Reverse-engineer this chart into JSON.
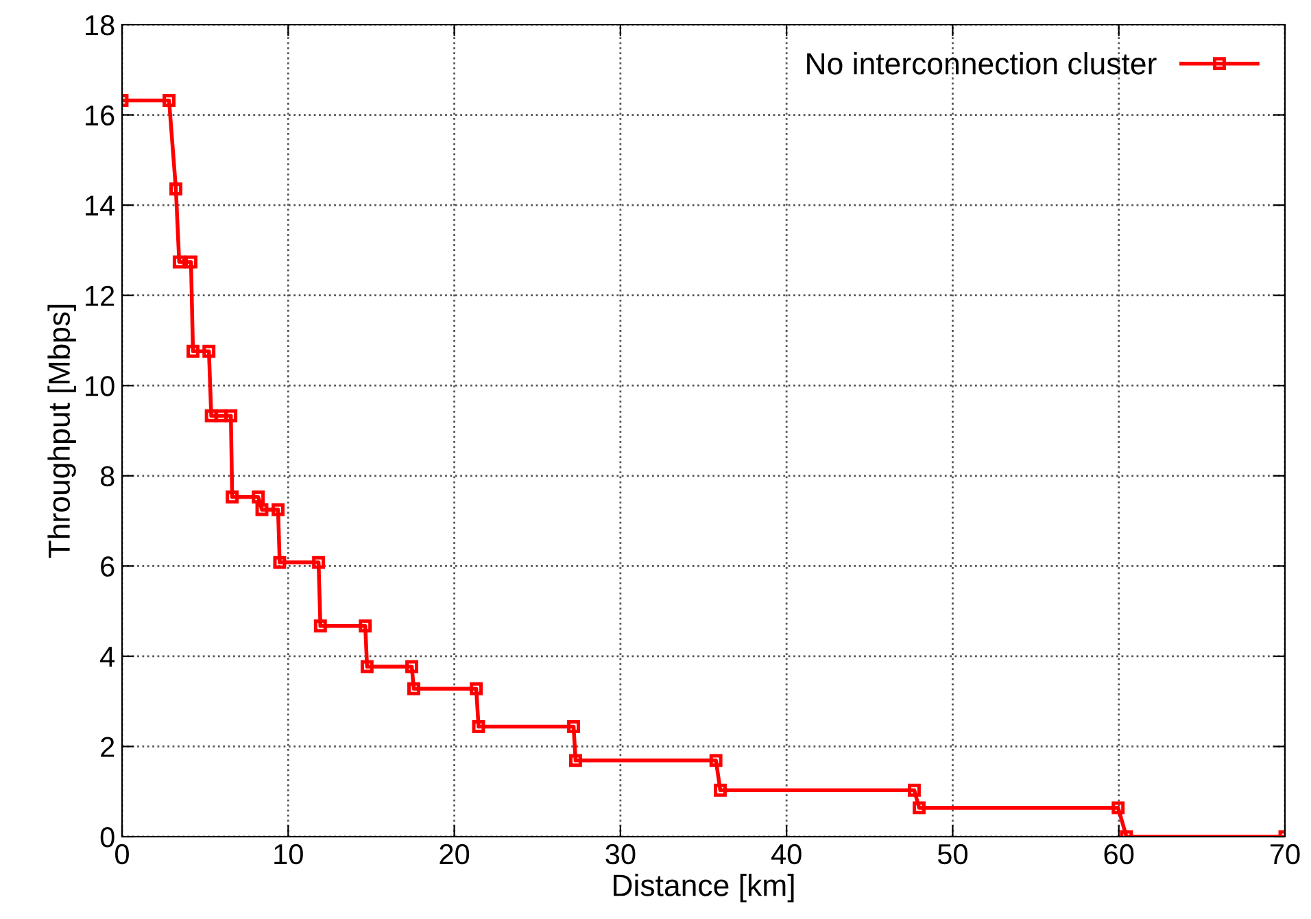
{
  "chart_data": {
    "type": "line",
    "xlabel": "Distance [km]",
    "ylabel": "Throughput [Mbps]",
    "xlim": [
      0,
      70
    ],
    "xticks": [
      0,
      10,
      20,
      30,
      40,
      50,
      60,
      70
    ],
    "ylim": [
      0,
      18
    ],
    "yticks": [
      0,
      2,
      4,
      6,
      8,
      10,
      12,
      14,
      16,
      18
    ],
    "grid": true,
    "legend": "top right",
    "marker": "square",
    "line_style": "solid",
    "series": [
      {
        "name": "No interconnection cluster",
        "color": "#ff0000",
        "x": [
          0,
          2.83,
          3.24,
          3.44,
          4.15,
          4.27,
          5.23,
          5.37,
          5.97,
          6.55,
          6.63,
          8.2,
          8.42,
          9.39,
          9.49,
          11.83,
          11.94,
          14.64,
          14.75,
          17.44,
          17.56,
          21.32,
          21.46,
          27.18,
          27.3,
          35.75,
          36.01,
          47.69,
          47.98,
          59.96,
          60.46,
          70
        ],
        "values": [
          16.32,
          16.32,
          14.36,
          12.74,
          12.74,
          10.76,
          10.76,
          9.33,
          9.33,
          9.33,
          7.53,
          7.53,
          7.25,
          7.25,
          6.08,
          6.08,
          4.67,
          4.67,
          3.77,
          3.77,
          3.28,
          3.28,
          2.44,
          2.44,
          1.69,
          1.69,
          1.03,
          1.03,
          0.64,
          0.64,
          0,
          0
        ]
      }
    ]
  }
}
